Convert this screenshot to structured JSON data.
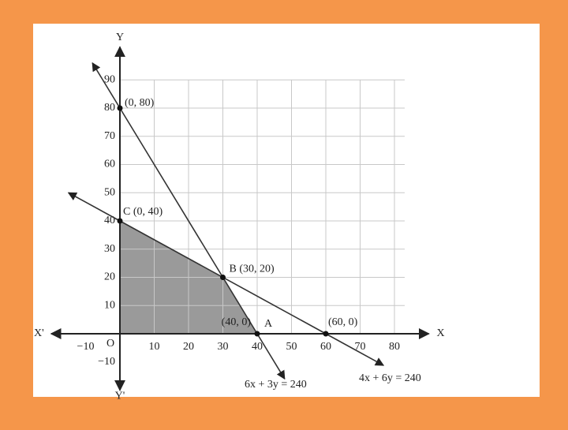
{
  "chart_data": {
    "type": "line",
    "x_label": "X",
    "x_label_neg": "X'",
    "y_label": "Y",
    "y_label_neg": "Y'",
    "origin_label": "O",
    "xlim": [
      -20,
      90
    ],
    "ylim": [
      -20,
      105
    ],
    "xticks": [
      {
        "value": -10,
        "label": "−10"
      },
      10,
      20,
      30,
      40,
      50,
      60,
      70,
      80
    ],
    "yticks": [
      {
        "value": -10,
        "label": "−10"
      },
      10,
      20,
      30,
      40,
      50,
      60,
      70,
      80,
      90
    ],
    "grid": true,
    "series": [
      {
        "name": "6x + 3y = 240",
        "color": "#333333",
        "x": [
          0,
          40
        ],
        "values": [
          80,
          0
        ]
      },
      {
        "name": "4x + 6y = 240",
        "color": "#333333",
        "x": [
          0,
          60
        ],
        "values": [
          40,
          0
        ]
      }
    ],
    "feasible_region": {
      "color": "#9a9a9a",
      "x": [
        0,
        0,
        30,
        40
      ],
      "y": [
        0,
        40,
        20,
        0
      ]
    },
    "points": [
      {
        "label": "(0, 80)",
        "x": 0,
        "y": 80
      },
      {
        "label": "C (0, 40)",
        "x": 0,
        "y": 40
      },
      {
        "label": "B (30, 20)",
        "x": 30,
        "y": 20
      },
      {
        "label": "(40, 0)",
        "name": "A",
        "x": 40,
        "y": 0
      },
      {
        "label": "(60, 0)",
        "x": 60,
        "y": 0
      }
    ]
  }
}
